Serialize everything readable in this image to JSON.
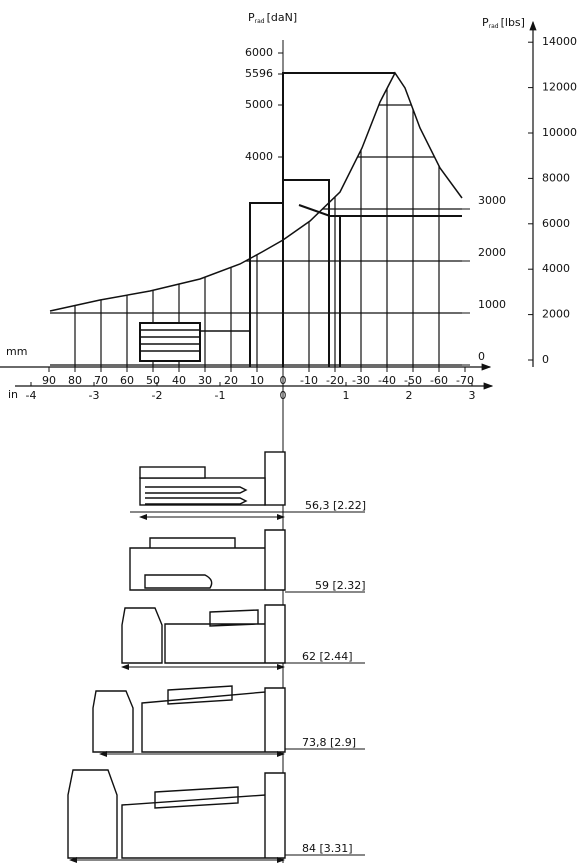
{
  "chart": {
    "y_left_label": {
      "symbol": "P",
      "subscript": "rad",
      "unit": "[daN]"
    },
    "y_right_label": {
      "symbol": "P",
      "subscript": "rad",
      "unit": "[lbs]"
    },
    "daN_ticks": [
      0,
      1000,
      2000,
      3000,
      4000,
      5000,
      5596,
      6000
    ],
    "lbs_ticks": [
      0,
      2000,
      4000,
      6000,
      8000,
      10000,
      12000,
      14000
    ],
    "mm_label": "mm",
    "mm_ticks": [
      90,
      80,
      70,
      60,
      50,
      40,
      30,
      20,
      10,
      0,
      -10,
      -20,
      -30,
      -40,
      -50,
      -60,
      -70
    ],
    "in_label": "in",
    "in_ticks": [
      -4,
      -3,
      -2,
      -1,
      0,
      1,
      2,
      3
    ]
  },
  "drawings": {
    "dimensions": [
      "56,3 [2.22]",
      "59 [2.32]",
      "62 [2.44]",
      "73,8 [2.9]",
      "84 [3.31]"
    ]
  }
}
